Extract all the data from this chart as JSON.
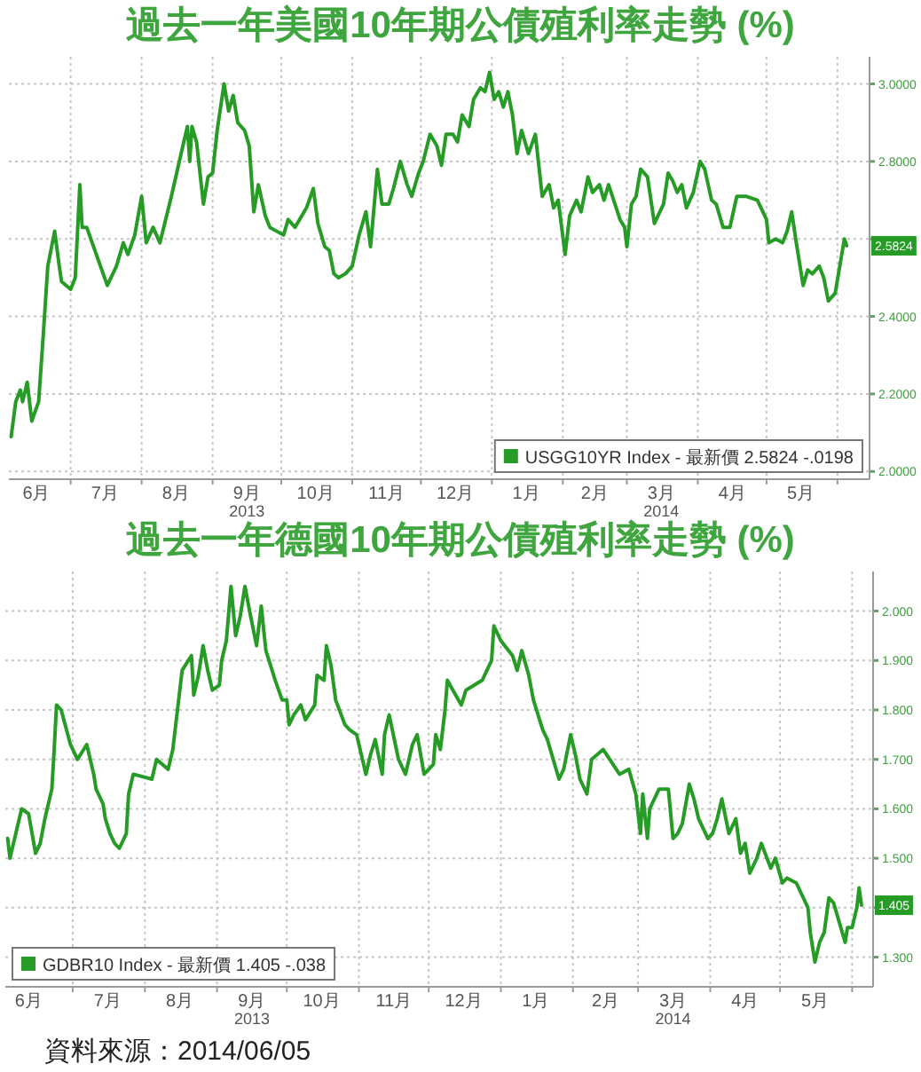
{
  "chart_data": [
    {
      "type": "line",
      "title": "過去一年美國10年期公債殖利率走勢 (%)",
      "x": [
        "2013-06-05",
        "2013-06-07",
        "2013-06-09",
        "2013-06-10",
        "2013-06-12",
        "2013-06-14",
        "2013-06-17",
        "2013-06-19",
        "2013-06-20",
        "2013-06-21",
        "2013-06-24",
        "2013-06-26",
        "2013-06-27",
        "2013-07-01",
        "2013-07-03",
        "2013-07-05",
        "2013-07-06",
        "2013-07-08",
        "2013-07-11",
        "2013-07-14",
        "2013-07-17",
        "2013-07-21",
        "2013-07-24",
        "2013-07-26",
        "2013-07-29",
        "2013-08-01",
        "2013-08-03",
        "2013-08-06",
        "2013-08-09",
        "2013-08-14",
        "2013-08-19",
        "2013-08-21",
        "2013-08-22",
        "2013-08-23",
        "2013-08-25",
        "2013-08-28",
        "2013-08-30",
        "2013-09-01",
        "2013-09-03",
        "2013-09-06",
        "2013-09-08",
        "2013-09-10",
        "2013-09-12",
        "2013-09-15",
        "2013-09-17",
        "2013-09-19",
        "2013-09-21",
        "2013-09-24",
        "2013-09-26",
        "2013-10-02",
        "2013-10-04",
        "2013-10-07",
        "2013-10-09",
        "2013-10-12",
        "2013-10-15",
        "2013-10-17",
        "2013-10-20",
        "2013-10-22",
        "2013-10-24",
        "2013-10-26",
        "2013-10-29",
        "2013-11-01",
        "2013-11-04",
        "2013-11-07",
        "2013-11-09",
        "2013-11-12",
        "2013-11-14",
        "2013-11-17",
        "2013-11-19",
        "2013-11-22",
        "2013-11-25",
        "2013-11-27",
        "2013-11-30",
        "2013-12-02",
        "2013-12-05",
        "2013-12-08",
        "2013-12-10",
        "2013-12-12",
        "2013-12-15",
        "2013-12-17",
        "2013-12-19",
        "2013-12-22",
        "2013-12-24",
        "2013-12-27",
        "2013-12-29",
        "2013-12-31",
        "2014-01-02",
        "2014-01-04",
        "2014-01-06",
        "2014-01-08",
        "2014-01-10",
        "2014-01-12",
        "2014-01-14",
        "2014-01-17",
        "2014-01-20",
        "2014-01-23",
        "2014-01-26",
        "2014-01-28",
        "2014-01-30",
        "2014-02-02",
        "2014-02-04",
        "2014-02-07",
        "2014-02-09",
        "2014-02-12",
        "2014-02-14",
        "2014-02-17",
        "2014-02-19",
        "2014-02-21",
        "2014-02-26",
        "2014-02-28",
        "2014-03-01",
        "2014-03-03",
        "2014-03-05",
        "2014-03-07",
        "2014-03-10",
        "2014-03-13",
        "2014-03-17",
        "2014-03-19",
        "2014-03-21",
        "2014-03-23",
        "2014-03-25",
        "2014-03-27",
        "2014-03-30",
        "2014-04-02",
        "2014-04-04",
        "2014-04-07",
        "2014-04-09",
        "2014-04-12",
        "2014-04-15",
        "2014-04-18",
        "2014-04-22",
        "2014-04-27",
        "2014-05-01",
        "2014-05-02",
        "2014-05-05",
        "2014-05-08",
        "2014-05-10",
        "2014-05-12",
        "2014-05-14",
        "2014-05-17",
        "2014-05-19",
        "2014-05-21",
        "2014-05-24",
        "2014-05-26",
        "2014-05-28",
        "2014-05-31",
        "2014-06-02",
        "2014-06-04",
        "2014-06-05"
      ],
      "series": [
        {
          "name": "USGG10YR Index - 最新價 2.5824 -.0198",
          "color": "#269c26",
          "values": [
            2.09,
            2.18,
            2.21,
            2.18,
            2.23,
            2.13,
            2.18,
            2.35,
            2.44,
            2.53,
            2.62,
            2.53,
            2.49,
            2.47,
            2.5,
            2.74,
            2.63,
            2.63,
            2.58,
            2.53,
            2.48,
            2.53,
            2.59,
            2.56,
            2.61,
            2.71,
            2.59,
            2.63,
            2.59,
            2.71,
            2.84,
            2.89,
            2.8,
            2.89,
            2.85,
            2.69,
            2.76,
            2.77,
            2.88,
            3.0,
            2.93,
            2.97,
            2.9,
            2.88,
            2.84,
            2.67,
            2.74,
            2.66,
            2.63,
            2.61,
            2.65,
            2.63,
            2.65,
            2.68,
            2.73,
            2.64,
            2.58,
            2.57,
            2.51,
            2.5,
            2.51,
            2.53,
            2.61,
            2.67,
            2.58,
            2.78,
            2.69,
            2.69,
            2.73,
            2.8,
            2.74,
            2.71,
            2.77,
            2.8,
            2.87,
            2.84,
            2.79,
            2.87,
            2.87,
            2.85,
            2.92,
            2.89,
            2.96,
            2.99,
            2.98,
            3.03,
            2.96,
            2.98,
            2.94,
            2.98,
            2.92,
            2.82,
            2.88,
            2.82,
            2.87,
            2.71,
            2.74,
            2.68,
            2.7,
            2.56,
            2.66,
            2.7,
            2.67,
            2.76,
            2.72,
            2.74,
            2.7,
            2.74,
            2.65,
            2.63,
            2.58,
            2.69,
            2.71,
            2.78,
            2.76,
            2.64,
            2.69,
            2.77,
            2.75,
            2.72,
            2.74,
            2.68,
            2.72,
            2.8,
            2.78,
            2.7,
            2.69,
            2.63,
            2.63,
            2.71,
            2.71,
            2.7,
            2.65,
            2.59,
            2.6,
            2.59,
            2.62,
            2.67,
            2.59,
            2.48,
            2.52,
            2.51,
            2.53,
            2.5,
            2.44,
            2.46,
            2.53,
            2.6,
            2.5824
          ]
        }
      ],
      "xlim": [
        "2013-06-04",
        "2014-06-15"
      ],
      "xticks": [
        {
          "value": "2013-06-16",
          "label": "6月"
        },
        {
          "value": "2013-07-01",
          "label": null
        },
        {
          "value": "2013-07-16",
          "label": "7月"
        },
        {
          "value": "2013-08-01",
          "label": null
        },
        {
          "value": "2013-08-16",
          "label": "8月"
        },
        {
          "value": "2013-09-01",
          "label": null
        },
        {
          "value": "2013-09-16",
          "label": "9月\n2013"
        },
        {
          "value": "2013-10-01",
          "label": null
        },
        {
          "value": "2013-10-16",
          "label": "10月"
        },
        {
          "value": "2013-11-01",
          "label": null
        },
        {
          "value": "2013-11-16",
          "label": "11月"
        },
        {
          "value": "2013-12-01",
          "label": null
        },
        {
          "value": "2013-12-16",
          "label": "12月"
        },
        {
          "value": "2014-01-01",
          "label": null
        },
        {
          "value": "2014-01-16",
          "label": "1月"
        },
        {
          "value": "2014-02-01",
          "label": null
        },
        {
          "value": "2014-02-15",
          "label": "2月"
        },
        {
          "value": "2014-03-01",
          "label": null
        },
        {
          "value": "2014-03-16",
          "label": "3月\n2014"
        },
        {
          "value": "2014-04-01",
          "label": null
        },
        {
          "value": "2014-04-16",
          "label": "4月"
        },
        {
          "value": "2014-05-01",
          "label": null
        },
        {
          "value": "2014-05-16",
          "label": "5月"
        },
        {
          "value": "2014-06-01",
          "label": null
        }
      ],
      "ylim": [
        1.98,
        3.07
      ],
      "yticks": [
        {
          "value": 2.0,
          "label": "2.0000"
        },
        {
          "value": 2.2,
          "label": "2.2000"
        },
        {
          "value": 2.4,
          "label": "2.4000"
        },
        {
          "value": 2.6,
          "label": null
        },
        {
          "value": 2.8,
          "label": "2.8000"
        },
        {
          "value": 3.0,
          "label": "3.0000"
        }
      ],
      "grid": true,
      "legend": "bottom right",
      "annotations": [
        {
          "text": "2.5824",
          "y": 2.5824
        }
      ]
    },
    {
      "type": "line",
      "title": "過去一年德國10年期公債殖利率走勢 (%)",
      "x": [
        "2013-06-03",
        "2013-06-04",
        "2013-06-09",
        "2013-06-12",
        "2013-06-15",
        "2013-06-17",
        "2013-06-19",
        "2013-06-22",
        "2013-06-23",
        "2013-06-24",
        "2013-06-26",
        "2013-06-30",
        "2013-07-03",
        "2013-07-07",
        "2013-07-10",
        "2013-07-11",
        "2013-07-14",
        "2013-07-15",
        "2013-07-17",
        "2013-07-19",
        "2013-07-21",
        "2013-07-24",
        "2013-07-25",
        "2013-07-27",
        "2013-08-04",
        "2013-08-06",
        "2013-08-11",
        "2013-08-13",
        "2013-08-15",
        "2013-08-17",
        "2013-08-21",
        "2013-08-22",
        "2013-08-24",
        "2013-08-26",
        "2013-08-28",
        "2013-08-30",
        "2013-09-02",
        "2013-09-03",
        "2013-09-05",
        "2013-09-07",
        "2013-09-09",
        "2013-09-11",
        "2013-09-13",
        "2013-09-15",
        "2013-09-18",
        "2013-09-20",
        "2013-09-22",
        "2013-09-26",
        "2013-09-29",
        "2013-10-01",
        "2013-10-02",
        "2013-10-04",
        "2013-10-07",
        "2013-10-09",
        "2013-10-13",
        "2013-10-14",
        "2013-10-17",
        "2013-10-18",
        "2013-10-20",
        "2013-10-22",
        "2013-10-26",
        "2013-10-28",
        "2013-10-31",
        "2013-11-02",
        "2013-11-04",
        "2013-11-06",
        "2013-11-08",
        "2013-11-11",
        "2013-11-12",
        "2013-11-14",
        "2013-11-18",
        "2013-11-21",
        "2013-11-24",
        "2013-11-26",
        "2013-11-29",
        "2013-12-03",
        "2013-12-04",
        "2013-12-06",
        "2013-12-08",
        "2013-12-09",
        "2013-12-15",
        "2013-12-17",
        "2013-12-24",
        "2013-12-26",
        "2013-12-28",
        "2013-12-29",
        "2014-01-01",
        "2014-01-06",
        "2014-01-08",
        "2014-01-10",
        "2014-01-13",
        "2014-01-15",
        "2014-01-19",
        "2014-01-21",
        "2014-01-26",
        "2014-01-28",
        "2014-01-31",
        "2014-02-02",
        "2014-02-04",
        "2014-02-07",
        "2014-02-09",
        "2014-02-14",
        "2014-02-21",
        "2014-02-25",
        "2014-02-28",
        "2014-03-02",
        "2014-03-03",
        "2014-03-05",
        "2014-03-06",
        "2014-03-10",
        "2014-03-14",
        "2014-03-16",
        "2014-03-18",
        "2014-03-20",
        "2014-03-23",
        "2014-03-25",
        "2014-03-27",
        "2014-03-31",
        "2014-04-02",
        "2014-04-04",
        "2014-04-06",
        "2014-04-09",
        "2014-04-12",
        "2014-04-14",
        "2014-04-16",
        "2014-04-18",
        "2014-04-21",
        "2014-04-23",
        "2014-04-27",
        "2014-04-29",
        "2014-05-02",
        "2014-05-04",
        "2014-05-08",
        "2014-05-13",
        "2014-05-14",
        "2014-05-16",
        "2014-05-18",
        "2014-05-20",
        "2014-05-22",
        "2014-05-24",
        "2014-05-29",
        "2014-05-30",
        "2014-06-01",
        "2014-06-03",
        "2014-06-04",
        "2014-06-05"
      ],
      "series": [
        {
          "name": "GDBR10 Index - 最新價 1.405 -.038",
          "color": "#269c26",
          "values": [
            1.54,
            1.5,
            1.6,
            1.59,
            1.51,
            1.53,
            1.58,
            1.64,
            1.72,
            1.81,
            1.8,
            1.73,
            1.7,
            1.73,
            1.67,
            1.64,
            1.61,
            1.58,
            1.55,
            1.53,
            1.52,
            1.55,
            1.63,
            1.67,
            1.66,
            1.7,
            1.68,
            1.72,
            1.8,
            1.88,
            1.91,
            1.83,
            1.87,
            1.93,
            1.88,
            1.84,
            1.85,
            1.9,
            1.94,
            2.05,
            1.95,
            1.99,
            2.05,
            2.0,
            1.93,
            2.01,
            1.92,
            1.86,
            1.82,
            1.82,
            1.77,
            1.79,
            1.81,
            1.78,
            1.81,
            1.87,
            1.86,
            1.93,
            1.89,
            1.82,
            1.77,
            1.76,
            1.75,
            1.71,
            1.67,
            1.71,
            1.74,
            1.67,
            1.75,
            1.79,
            1.7,
            1.67,
            1.73,
            1.75,
            1.67,
            1.69,
            1.75,
            1.72,
            1.8,
            1.86,
            1.81,
            1.84,
            1.86,
            1.88,
            1.9,
            1.97,
            1.94,
            1.91,
            1.88,
            1.92,
            1.87,
            1.82,
            1.76,
            1.74,
            1.66,
            1.68,
            1.75,
            1.71,
            1.66,
            1.63,
            1.7,
            1.72,
            1.67,
            1.68,
            1.63,
            1.55,
            1.63,
            1.54,
            1.6,
            1.64,
            1.64,
            1.54,
            1.55,
            1.57,
            1.65,
            1.62,
            1.58,
            1.54,
            1.55,
            1.58,
            1.62,
            1.55,
            1.58,
            1.51,
            1.53,
            1.47,
            1.5,
            1.53,
            1.48,
            1.5,
            1.45,
            1.46,
            1.45,
            1.4,
            1.35,
            1.29,
            1.33,
            1.35,
            1.42,
            1.41,
            1.33,
            1.36,
            1.36,
            1.4,
            1.44,
            1.405
          ]
        }
      ],
      "xlim": [
        "2013-06-02",
        "2014-06-10"
      ],
      "xticks": [
        {
          "value": "2013-06-12",
          "label": "6月"
        },
        {
          "value": "2013-07-01",
          "label": null
        },
        {
          "value": "2013-07-16",
          "label": "7月"
        },
        {
          "value": "2013-08-01",
          "label": null
        },
        {
          "value": "2013-08-16",
          "label": "8月"
        },
        {
          "value": "2013-09-01",
          "label": null
        },
        {
          "value": "2013-09-16",
          "label": "9月\n2013"
        },
        {
          "value": "2013-10-01",
          "label": null
        },
        {
          "value": "2013-10-16",
          "label": "10月"
        },
        {
          "value": "2013-11-01",
          "label": null
        },
        {
          "value": "2013-11-16",
          "label": "11月"
        },
        {
          "value": "2013-12-01",
          "label": null
        },
        {
          "value": "2013-12-16",
          "label": "12月"
        },
        {
          "value": "2014-01-01",
          "label": null
        },
        {
          "value": "2014-01-16",
          "label": "1月"
        },
        {
          "value": "2014-02-01",
          "label": null
        },
        {
          "value": "2014-02-15",
          "label": "2月"
        },
        {
          "value": "2014-03-01",
          "label": null
        },
        {
          "value": "2014-03-16",
          "label": "3月\n2014"
        },
        {
          "value": "2014-04-01",
          "label": null
        },
        {
          "value": "2014-04-16",
          "label": "4月"
        },
        {
          "value": "2014-05-01",
          "label": null
        },
        {
          "value": "2014-05-16",
          "label": "5月"
        },
        {
          "value": "2014-06-01",
          "label": null
        }
      ],
      "ylim": [
        1.24,
        2.08
      ],
      "yticks": [
        {
          "value": 1.3,
          "label": "1.300"
        },
        {
          "value": 1.4,
          "label": null
        },
        {
          "value": 1.5,
          "label": "1.500"
        },
        {
          "value": 1.6,
          "label": "1.600"
        },
        {
          "value": 1.7,
          "label": "1.700"
        },
        {
          "value": 1.8,
          "label": "1.800"
        },
        {
          "value": 1.9,
          "label": "1.900"
        },
        {
          "value": 2.0,
          "label": "2.000"
        }
      ],
      "grid": true,
      "legend": "bottom left",
      "annotations": [
        {
          "text": "1.405",
          "y": 1.405
        },
        "資料來源：2014/06/05"
      ]
    }
  ]
}
